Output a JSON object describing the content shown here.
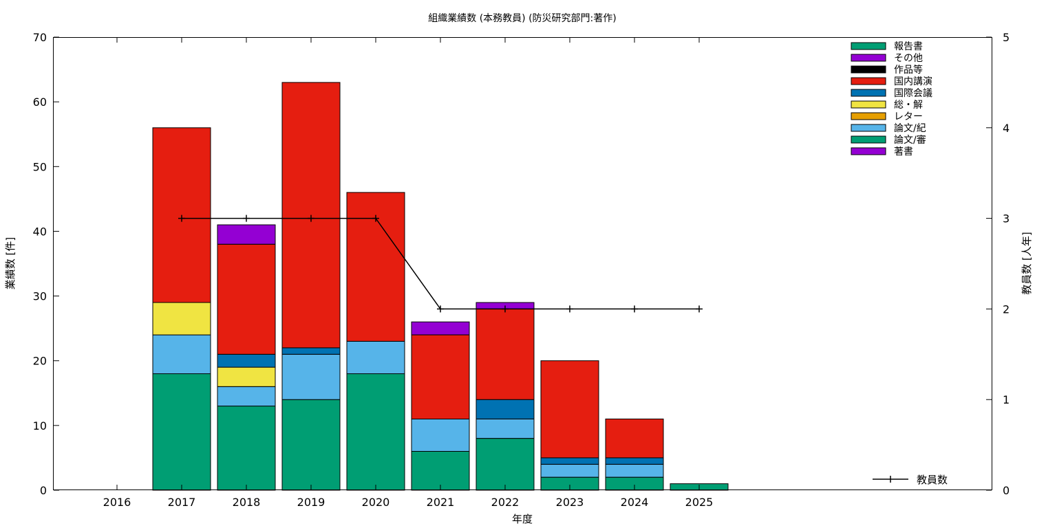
{
  "chart_data": {
    "type": "bar",
    "title": "組織業績数 (本務教員) (防災研究部門:著作)",
    "xlabel": "年度",
    "ylabel": "業績数 [件]",
    "y2label": "教員数 [人年]",
    "ylim": [
      0,
      70
    ],
    "y2lim": [
      0,
      5
    ],
    "yticks": [
      "0",
      "10",
      "20",
      "30",
      "40",
      "50",
      "60",
      "70"
    ],
    "y2ticks": [
      "0",
      "1",
      "2",
      "3",
      "4",
      "5"
    ],
    "categories": [
      "2016",
      "2017",
      "2018",
      "2019",
      "2020",
      "2021",
      "2022",
      "2023",
      "2024",
      "2025"
    ],
    "legend_position": "top-right",
    "stack_order_bottom_to_top": [
      "著書",
      "論文/審",
      "論文/紀",
      "レター",
      "総・解",
      "国際会議",
      "国内講演",
      "作品等",
      "その他",
      "報告書"
    ],
    "series": [
      {
        "name": "報告書",
        "color": "#009e73",
        "values": [
          0,
          0,
          0,
          0,
          0,
          0,
          0,
          0,
          0,
          0
        ]
      },
      {
        "name": "その他",
        "color": "#9400d3",
        "values": [
          0,
          0,
          3,
          0,
          0,
          2,
          1,
          0,
          0,
          0
        ]
      },
      {
        "name": "作品等",
        "color": "#000000",
        "values": [
          0,
          0,
          0,
          0,
          0,
          0,
          0,
          0,
          0,
          0
        ]
      },
      {
        "name": "国内講演",
        "color": "#e51e10",
        "values": [
          0,
          27,
          17,
          41,
          23,
          13,
          14,
          15,
          6,
          0
        ]
      },
      {
        "name": "国際会議",
        "color": "#0072b2",
        "values": [
          0,
          0,
          2,
          1,
          0,
          0,
          3,
          1,
          1,
          0
        ]
      },
      {
        "name": "総・解",
        "color": "#f0e442",
        "values": [
          0,
          5,
          3,
          0,
          0,
          0,
          0,
          0,
          0,
          0
        ]
      },
      {
        "name": "レター",
        "color": "#e69f00",
        "values": [
          0,
          0,
          0,
          0,
          0,
          0,
          0,
          0,
          0,
          0
        ]
      },
      {
        "name": "論文/紀",
        "color": "#56b4e9",
        "values": [
          0,
          6,
          3,
          7,
          5,
          5,
          3,
          2,
          2,
          0
        ]
      },
      {
        "name": "論文/審",
        "color": "#009e73",
        "values": [
          0,
          18,
          13,
          14,
          18,
          6,
          8,
          2,
          2,
          1
        ]
      },
      {
        "name": "著書",
        "color": "#9400d3",
        "values": [
          0,
          0,
          0,
          0,
          0,
          0,
          0,
          0,
          0,
          0
        ]
      }
    ],
    "line_series": {
      "name": "教員数",
      "color": "#000000",
      "axis": "y2",
      "x": [
        "2017",
        "2018",
        "2019",
        "2020",
        "2021",
        "2022",
        "2023",
        "2024",
        "2025"
      ],
      "values": [
        3,
        3,
        3,
        3,
        2,
        2,
        2,
        2,
        2
      ]
    },
    "grid": false
  }
}
